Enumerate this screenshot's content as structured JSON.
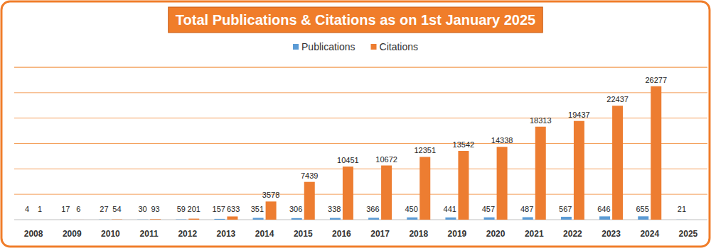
{
  "chart_data": {
    "type": "bar",
    "title": "Total Publications & Citations as on 1st January 2025",
    "categories": [
      "2008",
      "2009",
      "2010",
      "2011",
      "2012",
      "2013",
      "2014",
      "2015",
      "2016",
      "2017",
      "2018",
      "2019",
      "2020",
      "2021",
      "2022",
      "2023",
      "2024",
      "2025"
    ],
    "series": [
      {
        "name": "Publications",
        "color": "#5b9bd5",
        "values": [
          4,
          17,
          27,
          30,
          59,
          157,
          351,
          306,
          338,
          366,
          450,
          441,
          457,
          487,
          567,
          646,
          655,
          21
        ]
      },
      {
        "name": "Citations",
        "color": "#ed7d31",
        "values": [
          1,
          6,
          54,
          93,
          201,
          633,
          3578,
          7439,
          10451,
          10672,
          12351,
          13542,
          14338,
          18313,
          19437,
          22437,
          26277,
          null
        ]
      }
    ],
    "ylim": [
      0,
      30000
    ],
    "yticks": [
      0,
      5000,
      10000,
      15000,
      20000,
      25000,
      30000
    ],
    "grid": true,
    "legend": "top",
    "data_labels": true,
    "tick_labels": "x"
  }
}
